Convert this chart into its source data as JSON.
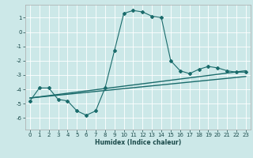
{
  "title": "",
  "xlabel": "Humidex (Indice chaleur)",
  "bg_color": "#cce8e8",
  "grid_color": "#ffffff",
  "line_color": "#1a6b6b",
  "xlim": [
    -0.5,
    23.5
  ],
  "ylim": [
    -6.8,
    1.9
  ],
  "xticks": [
    0,
    1,
    2,
    3,
    4,
    5,
    6,
    7,
    8,
    9,
    10,
    11,
    12,
    13,
    14,
    15,
    16,
    17,
    18,
    19,
    20,
    21,
    22,
    23
  ],
  "yticks": [
    -6,
    -5,
    -4,
    -3,
    -2,
    -1,
    0,
    1
  ],
  "series1_x": [
    0,
    1,
    2,
    3,
    4,
    5,
    6,
    7,
    8,
    9,
    10,
    11,
    12,
    13,
    14,
    15,
    16,
    17,
    18,
    19,
    20,
    21,
    22,
    23
  ],
  "series1_y": [
    -4.8,
    -3.9,
    -3.9,
    -4.7,
    -4.8,
    -5.5,
    -5.8,
    -5.5,
    -3.9,
    -1.3,
    1.3,
    1.5,
    1.4,
    1.1,
    1.0,
    -2.0,
    -2.7,
    -2.9,
    -2.6,
    -2.4,
    -2.5,
    -2.7,
    -2.8,
    -2.8
  ],
  "series2_x": [
    0,
    23
  ],
  "series2_y": [
    -4.6,
    -2.7
  ],
  "series3_x": [
    0,
    23
  ],
  "series3_y": [
    -4.6,
    -3.1
  ]
}
